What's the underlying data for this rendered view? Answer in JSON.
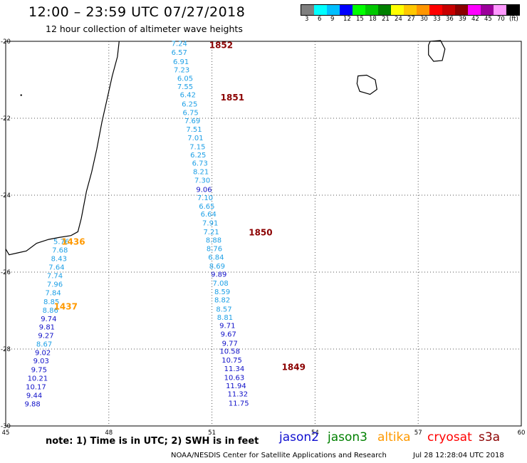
{
  "header": {
    "title": "12:00 – 23:59 UTC 07/27/2018",
    "subtitle": "12 hour collection of altimeter wave heights"
  },
  "colorbar": {
    "colors": [
      "#7f7f7f",
      "#00ffff",
      "#00bfff",
      "#0000ff",
      "#00ff00",
      "#00c800",
      "#008000",
      "#ffff00",
      "#ffc800",
      "#ff9600",
      "#ff0000",
      "#c80000",
      "#8b0000",
      "#ff00ff",
      "#9b009b",
      "#ff99ff",
      "#000000"
    ],
    "labels": [
      "3",
      "6",
      "9",
      "12",
      "15",
      "18",
      "21",
      "24",
      "27",
      "30",
      "33",
      "36",
      "39",
      "42",
      "45",
      "70",
      "(ft)"
    ]
  },
  "axes": {
    "x_ticks": [
      "45",
      "48",
      "51",
      "54",
      "57",
      "60"
    ],
    "y_ticks": [
      "-20",
      "-22",
      "-24",
      "-26",
      "-28",
      "-30"
    ]
  },
  "satellites": [
    {
      "name": "jason2",
      "color": "#1010d0"
    },
    {
      "name": "jason3",
      "color": "#008000"
    },
    {
      "name": "altika",
      "color": "#ff9900"
    },
    {
      "name": "cryosat",
      "color": "#ff0000"
    },
    {
      "name": "s3a",
      "color": "#8b0000"
    }
  ],
  "footer": {
    "note": "note: 1) Time is in UTC; 2) SWH is in feet",
    "credit": "NOAA/NESDIS Center for Satellite Applications and Research",
    "timestamp": "Jul 28 12:28:04 UTC 2018"
  },
  "time_labels": [
    {
      "text": "1852",
      "color": "#8b0000",
      "lon": 50.92,
      "lat": -20.08
    },
    {
      "text": "1851",
      "color": "#8b0000",
      "lon": 51.25,
      "lat": -21.44
    },
    {
      "text": "1850",
      "color": "#8b0000",
      "lon": 52.07,
      "lat": -24.95
    },
    {
      "text": "1849",
      "color": "#8b0000",
      "lon": 53.03,
      "lat": -28.45
    },
    {
      "text": "1436",
      "color": "#ff9900",
      "lon": 46.62,
      "lat": -25.19
    },
    {
      "text": "1437",
      "color": "#ff9900",
      "lon": 46.4,
      "lat": -26.88
    }
  ],
  "tracks": [
    {
      "satellite": "s3a",
      "color": "#1ea0e6",
      "points": [
        {
          "v": "7.24",
          "lon": 50.05,
          "lat": -20.05
        },
        {
          "v": "6.57",
          "lon": 50.05,
          "lat": -20.28
        },
        {
          "v": "6.91",
          "lon": 50.1,
          "lat": -20.52
        },
        {
          "v": "7.23",
          "lon": 50.12,
          "lat": -20.73
        },
        {
          "v": "6.05",
          "lon": 50.22,
          "lat": -20.95
        },
        {
          "v": "7.55",
          "lon": 50.22,
          "lat": -21.17
        },
        {
          "v": "6.42",
          "lon": 50.3,
          "lat": -21.38
        },
        {
          "v": "6.25",
          "lon": 50.35,
          "lat": -21.62
        },
        {
          "v": "6.75",
          "lon": 50.38,
          "lat": -21.84
        },
        {
          "v": "7.69",
          "lon": 50.43,
          "lat": -22.06
        },
        {
          "v": "7.51",
          "lon": 50.48,
          "lat": -22.28
        },
        {
          "v": "7.01",
          "lon": 50.52,
          "lat": -22.5
        },
        {
          "v": "7.15",
          "lon": 50.58,
          "lat": -22.73
        },
        {
          "v": "6.25",
          "lon": 50.6,
          "lat": -22.94
        },
        {
          "v": "6.73",
          "lon": 50.65,
          "lat": -23.16
        },
        {
          "v": "8.21",
          "lon": 50.68,
          "lat": -23.38
        },
        {
          "v": "7.30",
          "lon": 50.72,
          "lat": -23.6
        },
        {
          "v": "9.06",
          "lon": 50.77,
          "lat": -23.84
        },
        {
          "v": "7.10",
          "lon": 50.8,
          "lat": -24.06
        },
        {
          "v": "6.65",
          "lon": 50.85,
          "lat": -24.28
        },
        {
          "v": "6.64",
          "lon": 50.9,
          "lat": -24.48
        },
        {
          "v": "7.91",
          "lon": 50.95,
          "lat": -24.71
        },
        {
          "v": "7.21",
          "lon": 50.98,
          "lat": -24.94
        },
        {
          "v": "8.88",
          "lon": 51.05,
          "lat": -25.16
        },
        {
          "v": "8.76",
          "lon": 51.07,
          "lat": -25.38
        },
        {
          "v": "6.84",
          "lon": 51.12,
          "lat": -25.6
        },
        {
          "v": "8.69",
          "lon": 51.15,
          "lat": -25.83
        },
        {
          "v": "9.89",
          "lon": 51.2,
          "lat": -26.05
        },
        {
          "v": "7.08",
          "lon": 51.25,
          "lat": -26.28
        },
        {
          "v": "8.59",
          "lon": 51.3,
          "lat": -26.5
        },
        {
          "v": "8.82",
          "lon": 51.3,
          "lat": -26.71
        },
        {
          "v": "8.57",
          "lon": 51.35,
          "lat": -26.95
        },
        {
          "v": "8.81",
          "lon": 51.38,
          "lat": -27.17
        },
        {
          "v": "9.71",
          "lon": 51.45,
          "lat": -27.38
        },
        {
          "v": "9.67",
          "lon": 51.48,
          "lat": -27.6
        },
        {
          "v": "9.77",
          "lon": 51.52,
          "lat": -27.84
        },
        {
          "v": "10.58",
          "lon": 51.52,
          "lat": -28.05
        },
        {
          "v": "10.75",
          "lon": 51.58,
          "lat": -28.28
        },
        {
          "v": "11.34",
          "lon": 51.65,
          "lat": -28.5
        },
        {
          "v": "10.63",
          "lon": 51.65,
          "lat": -28.73
        },
        {
          "v": "11.94",
          "lon": 51.7,
          "lat": -28.94
        },
        {
          "v": "11.32",
          "lon": 51.75,
          "lat": -29.16
        },
        {
          "v": "11.75",
          "lon": 51.78,
          "lat": -29.4
        }
      ]
    },
    {
      "satellite": "altika",
      "color": "#1ea0e6",
      "points": [
        {
          "v": "5.76",
          "lon": 46.62,
          "lat": -25.19
        },
        {
          "v": "7.68",
          "lon": 46.58,
          "lat": -25.42
        },
        {
          "v": "8.43",
          "lon": 46.55,
          "lat": -25.64
        },
        {
          "v": "7.64",
          "lon": 46.48,
          "lat": -25.86
        },
        {
          "v": "7.74",
          "lon": 46.43,
          "lat": -26.08
        },
        {
          "v": "7.96",
          "lon": 46.43,
          "lat": -26.31
        },
        {
          "v": "7.84",
          "lon": 46.38,
          "lat": -26.53
        },
        {
          "v": "8.85",
          "lon": 46.33,
          "lat": -26.76
        },
        {
          "v": "8.86",
          "lon": 46.3,
          "lat": -26.98
        },
        {
          "v": "9.74",
          "lon": 46.25,
          "lat": -27.2
        },
        {
          "v": "9.81",
          "lon": 46.2,
          "lat": -27.42
        },
        {
          "v": "9.27",
          "lon": 46.17,
          "lat": -27.64
        },
        {
          "v": "8.67",
          "lon": 46.12,
          "lat": -27.86
        },
        {
          "v": "9.02",
          "lon": 46.08,
          "lat": -28.08
        },
        {
          "v": "9.03",
          "lon": 46.03,
          "lat": -28.3
        },
        {
          "v": "9.75",
          "lon": 45.97,
          "lat": -28.53
        },
        {
          "v": "10.21",
          "lon": 45.93,
          "lat": -28.75
        },
        {
          "v": "10.17",
          "lon": 45.88,
          "lat": -28.97
        },
        {
          "v": "9.44",
          "lon": 45.83,
          "lat": -29.19
        },
        {
          "v": "9.88",
          "lon": 45.78,
          "lat": -29.42
        }
      ]
    }
  ]
}
